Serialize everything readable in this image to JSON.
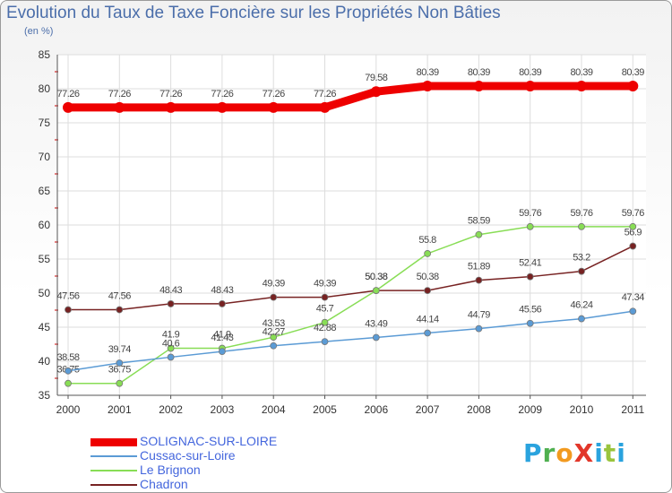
{
  "chart_data": {
    "type": "line",
    "title": "Evolution du Taux de Taxe Foncière sur les Propriétés Non Bâties",
    "unit_label": "(en %)",
    "xlabel": "",
    "ylabel": "",
    "ylim": [
      35,
      85
    ],
    "yticks": [
      35,
      40,
      45,
      50,
      55,
      60,
      65,
      70,
      75,
      80,
      85
    ],
    "grid": true,
    "legend_position": "bottom-left",
    "categories": [
      "2000",
      "2001",
      "2002",
      "2003",
      "2004",
      "2005",
      "2006",
      "2007",
      "2008",
      "2009",
      "2010",
      "2011"
    ],
    "series": [
      {
        "name": "SOLIGNAC-SUR-LOIRE",
        "color": "#ee0000",
        "values": [
          77.26,
          77.26,
          77.26,
          77.26,
          77.26,
          77.26,
          79.58,
          80.39,
          80.39,
          80.39,
          80.39,
          80.39
        ],
        "labels": [
          "77.26",
          "77.26",
          "77.26",
          "77.26",
          "77.26",
          "77.26",
          "79.58",
          "80.39",
          "80.39",
          "80.39",
          "80.39",
          "80.39"
        ]
      },
      {
        "name": "Cussac-sur-Loire",
        "color": "#5b9bd5",
        "values": [
          38.58,
          39.74,
          40.6,
          41.43,
          42.27,
          42.88,
          43.49,
          44.14,
          44.79,
          45.56,
          46.24,
          47.34
        ],
        "labels": [
          "38.58",
          "39.74",
          "40.6",
          "41.43",
          "42.27",
          "42.88",
          "43.49",
          "44.14",
          "44.79",
          "45.56",
          "46.24",
          "47.34"
        ]
      },
      {
        "name": "Le Brignon",
        "color": "#88dd55",
        "values": [
          36.75,
          36.75,
          41.9,
          41.9,
          43.53,
          45.7,
          50.38,
          55.8,
          58.59,
          59.76,
          59.76,
          59.76
        ],
        "labels": [
          "36.75",
          "36.75",
          "41.9",
          "41.9",
          "43.53",
          "45.7",
          "50.38",
          "55.8",
          "58.59",
          "59.76",
          "59.76",
          "59.76"
        ]
      },
      {
        "name": "Chadron",
        "color": "#772222",
        "values": [
          47.56,
          47.56,
          48.43,
          48.43,
          49.39,
          49.39,
          50.38,
          50.38,
          51.89,
          52.41,
          53.2,
          56.9
        ],
        "labels": [
          "47.56",
          "47.56",
          "48.43",
          "48.43",
          "49.39",
          "49.39",
          "50.38",
          "50.38",
          "51.89",
          "52.41",
          "53.2",
          "56.9"
        ]
      }
    ]
  },
  "logo": {
    "text": "ProXiti",
    "colors": [
      "#2aa3de",
      "#4fb050",
      "#f29a1f",
      "#e2372a",
      "#2aa3de",
      "#9ac43c"
    ]
  }
}
